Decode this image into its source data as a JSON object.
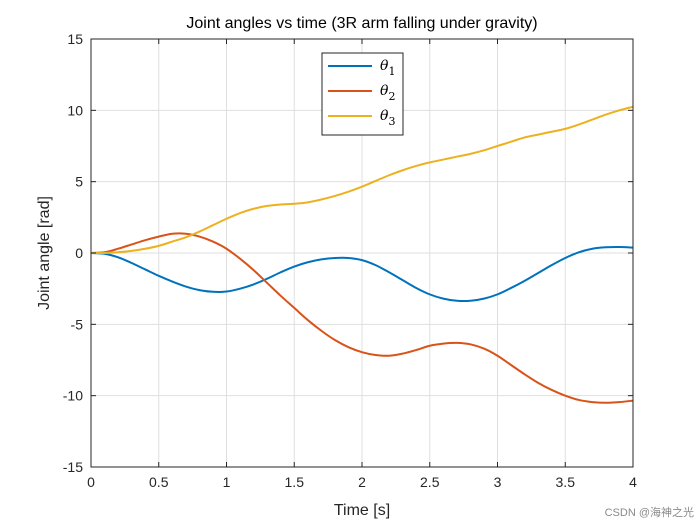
{
  "chart_data": {
    "type": "line",
    "title": "Joint angles vs time (3R arm falling under gravity)",
    "xlabel": "Time [s]",
    "ylabel": "Joint angle [rad]",
    "xlim": [
      0,
      4
    ],
    "ylim": [
      -15,
      15
    ],
    "xticks": [
      0,
      0.5,
      1,
      1.5,
      2,
      2.5,
      3,
      3.5,
      4
    ],
    "xtick_labels": [
      "0",
      "0.5",
      "1",
      "1.5",
      "2",
      "2.5",
      "3",
      "3.5",
      "4"
    ],
    "yticks": [
      -15,
      -10,
      -5,
      0,
      5,
      10,
      15
    ],
    "ytick_labels": [
      "-15",
      "-10",
      "-5",
      "0",
      "5",
      "10",
      "15"
    ],
    "grid": true,
    "legend_position": "top-center",
    "x": [
      0,
      0.1,
      0.2,
      0.3,
      0.4,
      0.5,
      0.6,
      0.7,
      0.8,
      0.9,
      1.0,
      1.1,
      1.2,
      1.3,
      1.4,
      1.5,
      1.6,
      1.7,
      1.8,
      1.9,
      2.0,
      2.1,
      2.2,
      2.3,
      2.4,
      2.5,
      2.6,
      2.7,
      2.8,
      2.9,
      3.0,
      3.1,
      3.2,
      3.3,
      3.4,
      3.5,
      3.6,
      3.7,
      3.8,
      3.9,
      4.0
    ],
    "series": [
      {
        "name": "θ",
        "subscript": "1",
        "color": "#0072BD",
        "values": [
          0,
          -0.05,
          -0.3,
          -0.7,
          -1.15,
          -1.6,
          -2.0,
          -2.35,
          -2.6,
          -2.72,
          -2.7,
          -2.5,
          -2.2,
          -1.8,
          -1.35,
          -0.95,
          -0.65,
          -0.45,
          -0.35,
          -0.35,
          -0.5,
          -0.85,
          -1.35,
          -1.9,
          -2.45,
          -2.9,
          -3.2,
          -3.35,
          -3.35,
          -3.2,
          -2.9,
          -2.45,
          -1.95,
          -1.4,
          -0.85,
          -0.35,
          0.05,
          0.3,
          0.4,
          0.42,
          0.38
        ]
      },
      {
        "name": "θ",
        "subscript": "2",
        "color": "#D95319",
        "values": [
          0,
          0.05,
          0.3,
          0.6,
          0.9,
          1.15,
          1.35,
          1.35,
          1.15,
          0.8,
          0.3,
          -0.4,
          -1.2,
          -2.1,
          -3.0,
          -3.85,
          -4.7,
          -5.45,
          -6.1,
          -6.6,
          -6.95,
          -7.15,
          -7.2,
          -7.05,
          -6.8,
          -6.5,
          -6.35,
          -6.3,
          -6.4,
          -6.7,
          -7.2,
          -7.85,
          -8.5,
          -9.1,
          -9.6,
          -10.0,
          -10.3,
          -10.45,
          -10.5,
          -10.45,
          -10.35
        ]
      },
      {
        "name": "θ",
        "subscript": "3",
        "color": "#EDB120",
        "values": [
          0,
          0.0,
          0.05,
          0.15,
          0.3,
          0.5,
          0.8,
          1.1,
          1.5,
          1.95,
          2.4,
          2.8,
          3.1,
          3.3,
          3.4,
          3.45,
          3.55,
          3.75,
          4.0,
          4.3,
          4.65,
          5.05,
          5.45,
          5.8,
          6.1,
          6.35,
          6.55,
          6.75,
          6.95,
          7.2,
          7.5,
          7.8,
          8.1,
          8.3,
          8.5,
          8.7,
          9.0,
          9.35,
          9.7,
          10.0,
          10.25
        ]
      }
    ]
  },
  "watermark": "CSDN @海神之光"
}
